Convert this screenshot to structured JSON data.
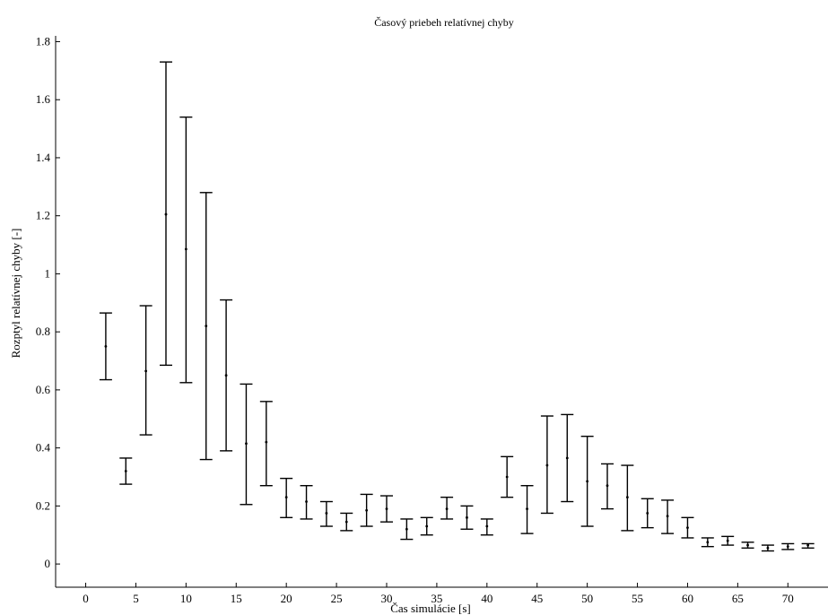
{
  "chart_data": {
    "type": "errorbar",
    "title": "Časový priebeh relatívnej chyby",
    "xlabel": "Čas simulácie [s]",
    "ylabel": "Rozptyl relatívnej chyby [-]",
    "xlim": [
      -3,
      74
    ],
    "ylim": [
      -0.08,
      1.82
    ],
    "xticks": [
      0,
      5,
      10,
      15,
      20,
      25,
      30,
      35,
      40,
      45,
      50,
      55,
      60,
      65,
      70
    ],
    "xtick_labels": [
      "0",
      "5",
      "10",
      "15",
      "20",
      "25",
      "30",
      "35",
      "40",
      "45",
      "50",
      "55",
      "60",
      "65",
      "70"
    ],
    "yticks": [
      0,
      0.2,
      0.4,
      0.6,
      0.8,
      1,
      1.2,
      1.4,
      1.6,
      1.8
    ],
    "ytick_labels": [
      "0",
      "0.2",
      "0.4",
      "0.6",
      "0.8",
      "1",
      "1.2",
      "1.4",
      "1.6",
      "1.8"
    ],
    "grid": false,
    "colors": {
      "line": "#000000",
      "background": "#ffffff"
    },
    "points": [
      {
        "x": 2,
        "y": 0.75,
        "lower": 0.635,
        "upper": 0.865
      },
      {
        "x": 4,
        "y": 0.32,
        "lower": 0.275,
        "upper": 0.365
      },
      {
        "x": 6,
        "y": 0.665,
        "lower": 0.445,
        "upper": 0.89
      },
      {
        "x": 8,
        "y": 1.205,
        "lower": 0.685,
        "upper": 1.73
      },
      {
        "x": 10,
        "y": 1.085,
        "lower": 0.625,
        "upper": 1.54
      },
      {
        "x": 12,
        "y": 0.82,
        "lower": 0.36,
        "upper": 1.28
      },
      {
        "x": 14,
        "y": 0.65,
        "lower": 0.39,
        "upper": 0.91
      },
      {
        "x": 16,
        "y": 0.415,
        "lower": 0.205,
        "upper": 0.62
      },
      {
        "x": 18,
        "y": 0.42,
        "lower": 0.27,
        "upper": 0.56
      },
      {
        "x": 20,
        "y": 0.23,
        "lower": 0.16,
        "upper": 0.295
      },
      {
        "x": 22,
        "y": 0.215,
        "lower": 0.155,
        "upper": 0.27
      },
      {
        "x": 24,
        "y": 0.175,
        "lower": 0.13,
        "upper": 0.215
      },
      {
        "x": 26,
        "y": 0.145,
        "lower": 0.115,
        "upper": 0.175
      },
      {
        "x": 28,
        "y": 0.185,
        "lower": 0.13,
        "upper": 0.24
      },
      {
        "x": 30,
        "y": 0.19,
        "lower": 0.145,
        "upper": 0.235
      },
      {
        "x": 32,
        "y": 0.12,
        "lower": 0.085,
        "upper": 0.155
      },
      {
        "x": 34,
        "y": 0.13,
        "lower": 0.1,
        "upper": 0.16
      },
      {
        "x": 36,
        "y": 0.19,
        "lower": 0.155,
        "upper": 0.23
      },
      {
        "x": 38,
        "y": 0.16,
        "lower": 0.12,
        "upper": 0.2
      },
      {
        "x": 40,
        "y": 0.13,
        "lower": 0.1,
        "upper": 0.155
      },
      {
        "x": 42,
        "y": 0.3,
        "lower": 0.23,
        "upper": 0.37
      },
      {
        "x": 44,
        "y": 0.19,
        "lower": 0.105,
        "upper": 0.27
      },
      {
        "x": 46,
        "y": 0.34,
        "lower": 0.175,
        "upper": 0.51
      },
      {
        "x": 48,
        "y": 0.365,
        "lower": 0.215,
        "upper": 0.515
      },
      {
        "x": 50,
        "y": 0.285,
        "lower": 0.13,
        "upper": 0.44
      },
      {
        "x": 52,
        "y": 0.27,
        "lower": 0.19,
        "upper": 0.345
      },
      {
        "x": 54,
        "y": 0.23,
        "lower": 0.115,
        "upper": 0.34
      },
      {
        "x": 56,
        "y": 0.175,
        "lower": 0.125,
        "upper": 0.225
      },
      {
        "x": 58,
        "y": 0.165,
        "lower": 0.105,
        "upper": 0.22
      },
      {
        "x": 60,
        "y": 0.125,
        "lower": 0.09,
        "upper": 0.16
      },
      {
        "x": 62,
        "y": 0.075,
        "lower": 0.06,
        "upper": 0.09
      },
      {
        "x": 64,
        "y": 0.08,
        "lower": 0.065,
        "upper": 0.095
      },
      {
        "x": 66,
        "y": 0.065,
        "lower": 0.055,
        "upper": 0.075
      },
      {
        "x": 68,
        "y": 0.055,
        "lower": 0.045,
        "upper": 0.065
      },
      {
        "x": 70,
        "y": 0.06,
        "lower": 0.05,
        "upper": 0.07
      },
      {
        "x": 72,
        "y": 0.065,
        "lower": 0.055,
        "upper": 0.07
      }
    ]
  }
}
